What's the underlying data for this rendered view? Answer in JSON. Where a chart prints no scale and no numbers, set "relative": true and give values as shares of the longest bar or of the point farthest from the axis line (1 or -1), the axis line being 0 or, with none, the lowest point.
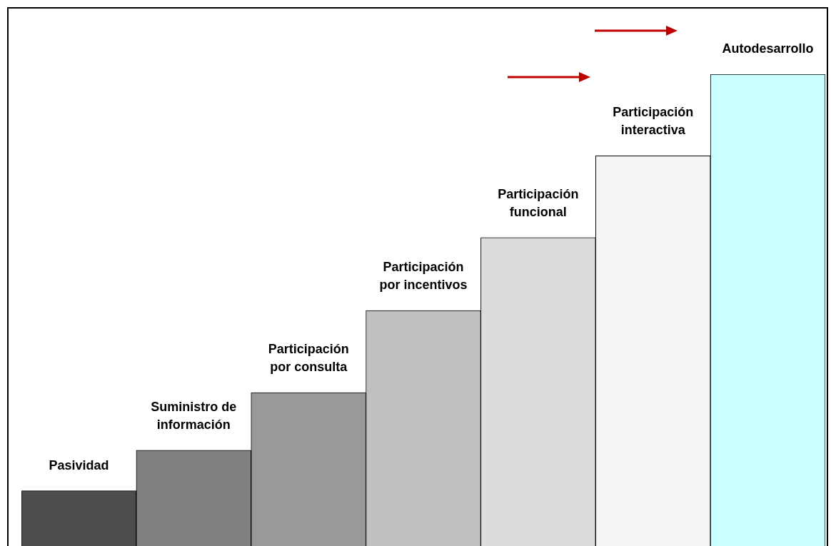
{
  "chart_data": {
    "type": "bar",
    "relative": true,
    "categories": [
      "Pasividad",
      "Suministro de información",
      "Participación por consulta",
      "Participación por incentivos",
      "Participación funcional",
      "Participación interactiva",
      "Autodesarrollo"
    ],
    "values": [
      0.117,
      0.203,
      0.325,
      0.499,
      0.654,
      0.827,
      1
    ],
    "colors": [
      "#4d4d4d",
      "#808080",
      "#999999",
      "#c0c0c0",
      "#dcdcdc",
      "#f5f5f5",
      "#ccffff"
    ],
    "legend": false
  }
}
